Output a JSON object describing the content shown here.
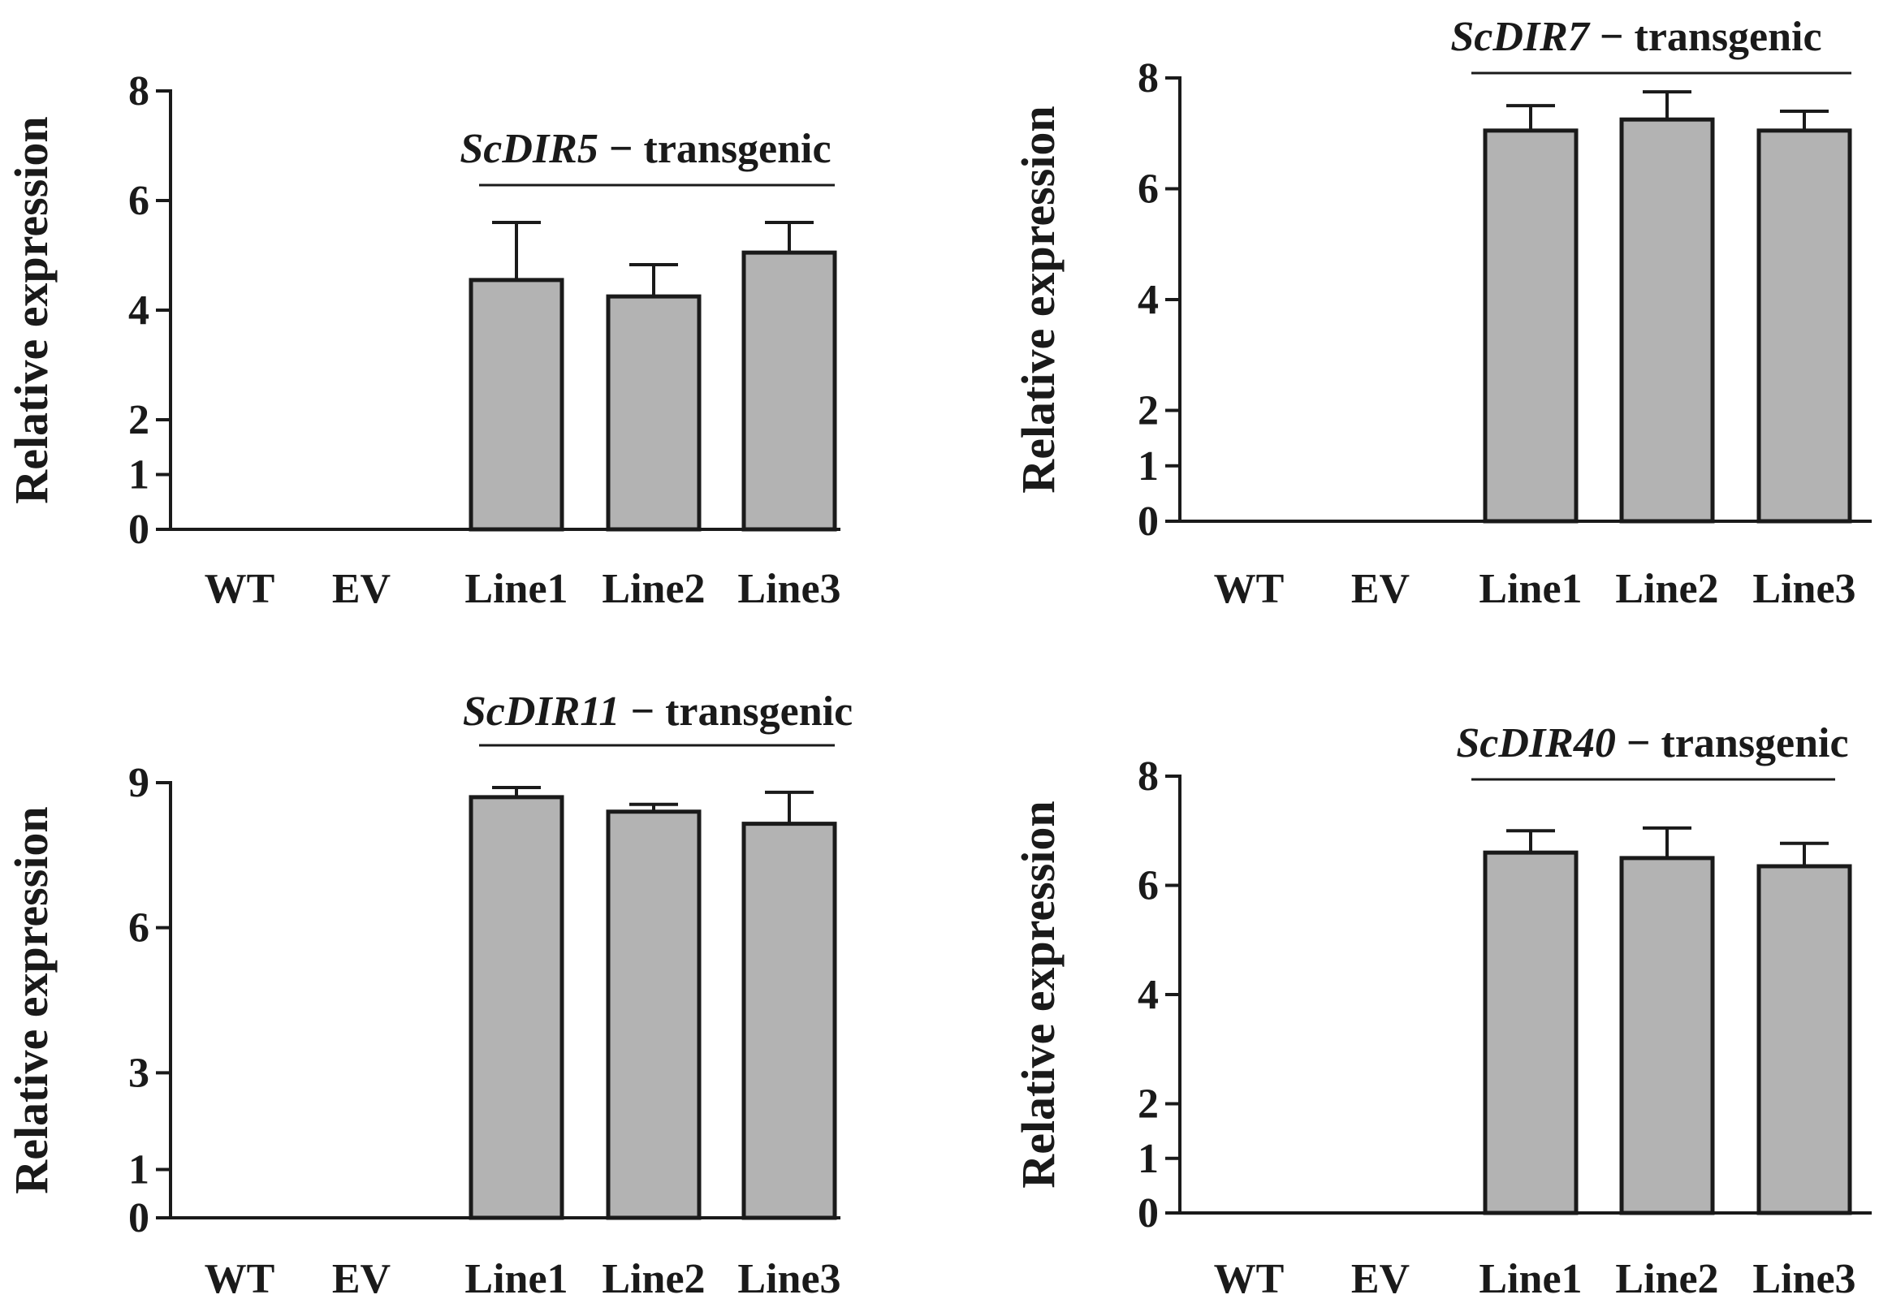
{
  "chart_data": [
    {
      "type": "bar",
      "title": "",
      "xlabel": "",
      "ylabel": "Relative expression",
      "ylim": [
        0,
        8
      ],
      "yticks": [
        0,
        1,
        2,
        4,
        6,
        8
      ],
      "categories": [
        "WT",
        "EV",
        "Line1",
        "Line2",
        "Line3"
      ],
      "values": [
        0,
        0,
        4.55,
        4.25,
        5.05
      ],
      "errors": [
        0,
        0,
        1.05,
        0.58,
        0.55
      ],
      "annotation": {
        "gene": "ScDIR5",
        "suffix": " − transgenic"
      }
    },
    {
      "type": "bar",
      "title": "",
      "xlabel": "",
      "ylabel": "Relative expression",
      "ylim": [
        0,
        8
      ],
      "yticks": [
        0,
        1,
        2,
        4,
        6,
        8
      ],
      "categories": [
        "WT",
        "EV",
        "Line1",
        "Line2",
        "Line3"
      ],
      "values": [
        0,
        0,
        7.05,
        7.25,
        7.05
      ],
      "errors": [
        0,
        0,
        0.45,
        0.5,
        0.35
      ],
      "annotation": {
        "gene": "ScDIR7",
        "suffix": " − transgenic"
      }
    },
    {
      "type": "bar",
      "title": "",
      "xlabel": "",
      "ylabel": "Relative expression",
      "ylim": [
        0,
        9
      ],
      "yticks": [
        0,
        1,
        3,
        6,
        9
      ],
      "categories": [
        "WT",
        "EV",
        "Line1",
        "Line2",
        "Line3"
      ],
      "values": [
        0,
        0,
        8.7,
        8.4,
        8.15
      ],
      "errors": [
        0,
        0,
        0.2,
        0.15,
        0.65
      ],
      "annotation": {
        "gene": "ScDIR11",
        "suffix": " − transgenic"
      }
    },
    {
      "type": "bar",
      "title": "",
      "xlabel": "",
      "ylabel": "Relative expression",
      "ylim": [
        0,
        8
      ],
      "yticks": [
        0,
        1,
        2,
        4,
        6,
        8
      ],
      "categories": [
        "WT",
        "EV",
        "Line1",
        "Line2",
        "Line3"
      ],
      "values": [
        0,
        0,
        6.6,
        6.5,
        6.35
      ],
      "errors": [
        0,
        0,
        0.4,
        0.55,
        0.42
      ],
      "annotation": {
        "gene": "ScDIR40",
        "suffix": " − transgenic"
      }
    }
  ],
  "colors": {
    "bar_fill": "#b3b3b3",
    "stroke": "#1a1a1a"
  }
}
